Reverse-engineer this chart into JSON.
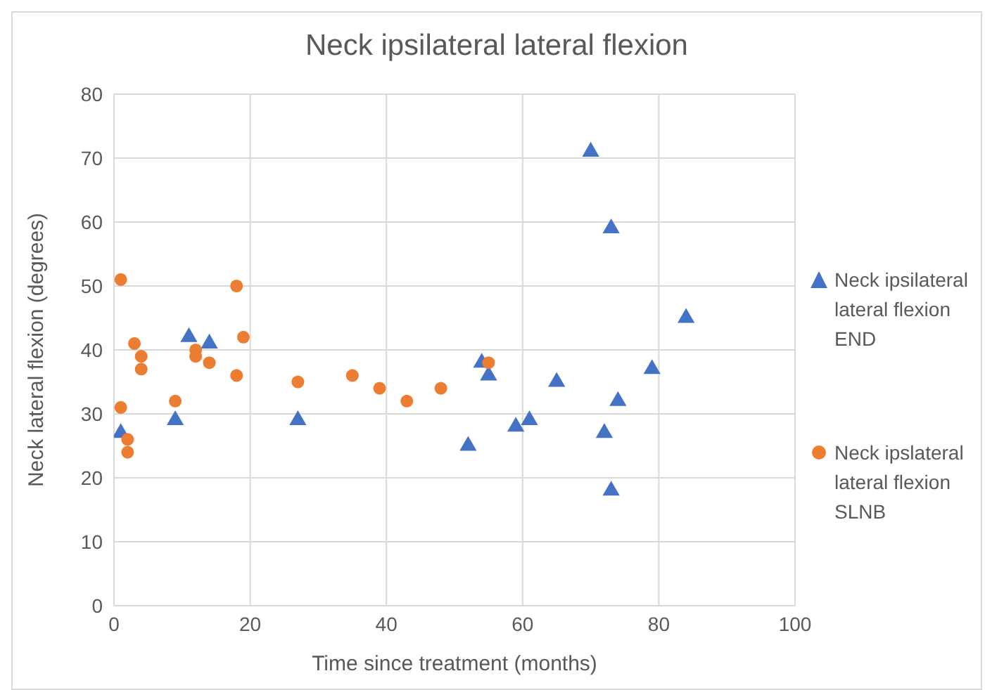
{
  "chart_data": {
    "type": "scatter",
    "title": "Neck ipsilateral lateral flexion",
    "xlabel": "Time since treatment (months)",
    "ylabel": "Neck lateral flexion (degrees)",
    "xlim": [
      0,
      100
    ],
    "xticks": [
      0,
      20,
      40,
      60,
      80,
      100
    ],
    "ylim": [
      0,
      80
    ],
    "yticks": [
      0,
      10,
      20,
      30,
      40,
      50,
      60,
      70,
      80
    ],
    "grid": true,
    "legend": "right",
    "series": [
      {
        "name": "Neck ipsilateral lateral flexion END",
        "color": "#4472c4",
        "marker": "triangle",
        "x": [
          1,
          9,
          11,
          14,
          27,
          52,
          54,
          55,
          59,
          61,
          65,
          70,
          72,
          73,
          73,
          74,
          79,
          84
        ],
        "values": [
          27,
          29,
          42,
          41,
          29,
          25,
          38,
          36,
          28,
          29,
          35,
          71,
          27,
          59,
          18,
          32,
          37,
          45
        ]
      },
      {
        "name": "Neck ipslateral lateral flexion SLNB",
        "color": "#ed7d31",
        "marker": "circle",
        "x": [
          1,
          1,
          2,
          2,
          3,
          4,
          4,
          9,
          12,
          12,
          14,
          18,
          18,
          19,
          27,
          35,
          39,
          43,
          48,
          55
        ],
        "values": [
          51,
          31,
          26,
          24,
          41,
          39,
          37,
          32,
          40,
          39,
          38,
          50,
          36,
          42,
          35,
          36,
          34,
          32,
          34,
          38
        ]
      }
    ]
  }
}
